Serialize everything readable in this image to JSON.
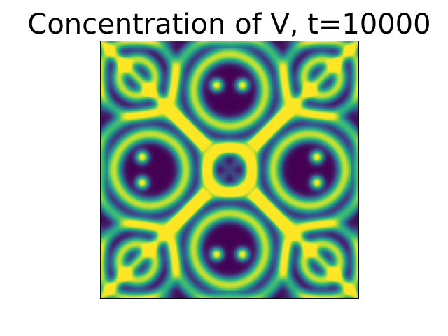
{
  "title": "Concentration of V, t=10000",
  "image": {
    "subject": "reaction-diffusion concentration field",
    "colormap": "viridis",
    "colors": {
      "low": "#440154",
      "mid": "#21918c",
      "high": "#fde725"
    }
  }
}
